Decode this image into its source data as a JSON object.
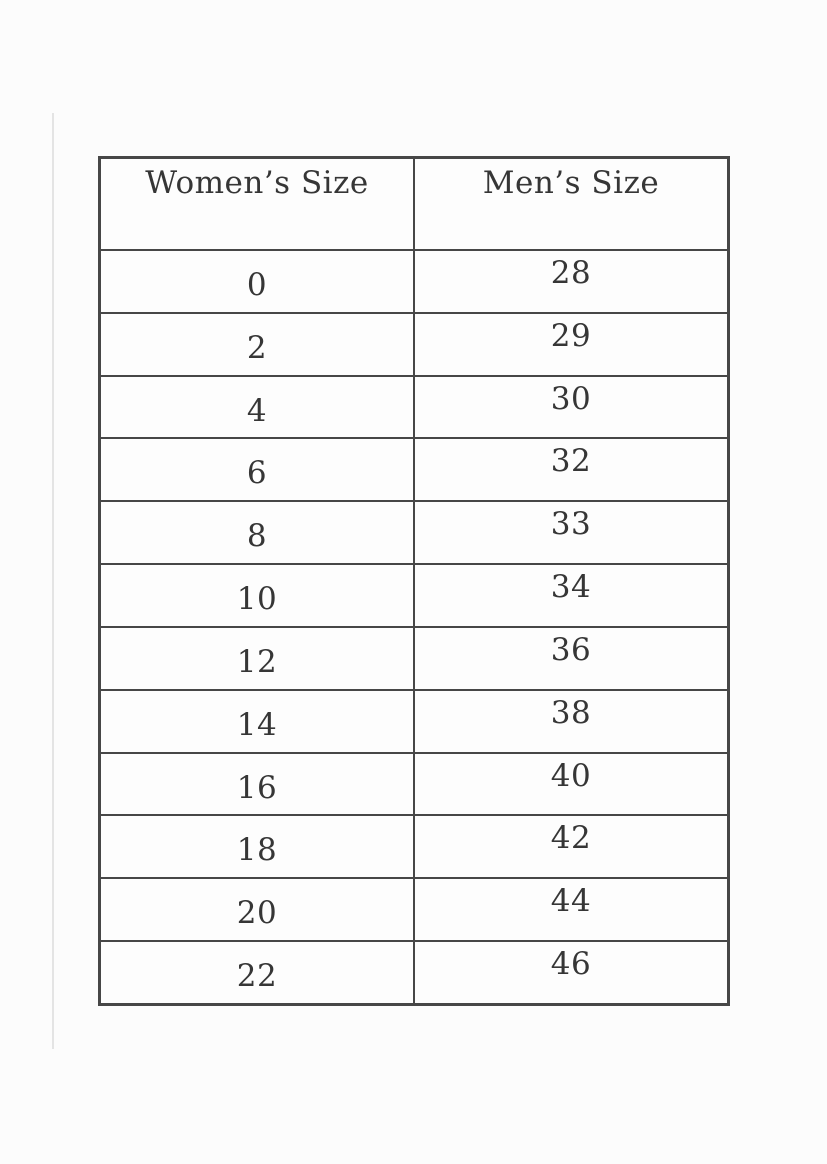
{
  "page": {
    "background_color": "#fcfcfc",
    "table_border_color": "#474747",
    "text_color": "#363636",
    "margin_line_color": "#e4e4e4"
  },
  "table": {
    "columns": [
      {
        "header": "Women’s Size"
      },
      {
        "header": "Men’s Size"
      }
    ],
    "rows": [
      {
        "womens": "0",
        "mens": "28"
      },
      {
        "womens": "2",
        "mens": "29"
      },
      {
        "womens": "4",
        "mens": "30"
      },
      {
        "womens": "6",
        "mens": "32"
      },
      {
        "womens": "8",
        "mens": "33"
      },
      {
        "womens": "10",
        "mens": "34"
      },
      {
        "womens": "12",
        "mens": "36"
      },
      {
        "womens": "14",
        "mens": "38"
      },
      {
        "womens": "16",
        "mens": "40"
      },
      {
        "womens": "18",
        "mens": "42"
      },
      {
        "womens": "20",
        "mens": "44"
      },
      {
        "womens": "22",
        "mens": "46"
      }
    ]
  }
}
